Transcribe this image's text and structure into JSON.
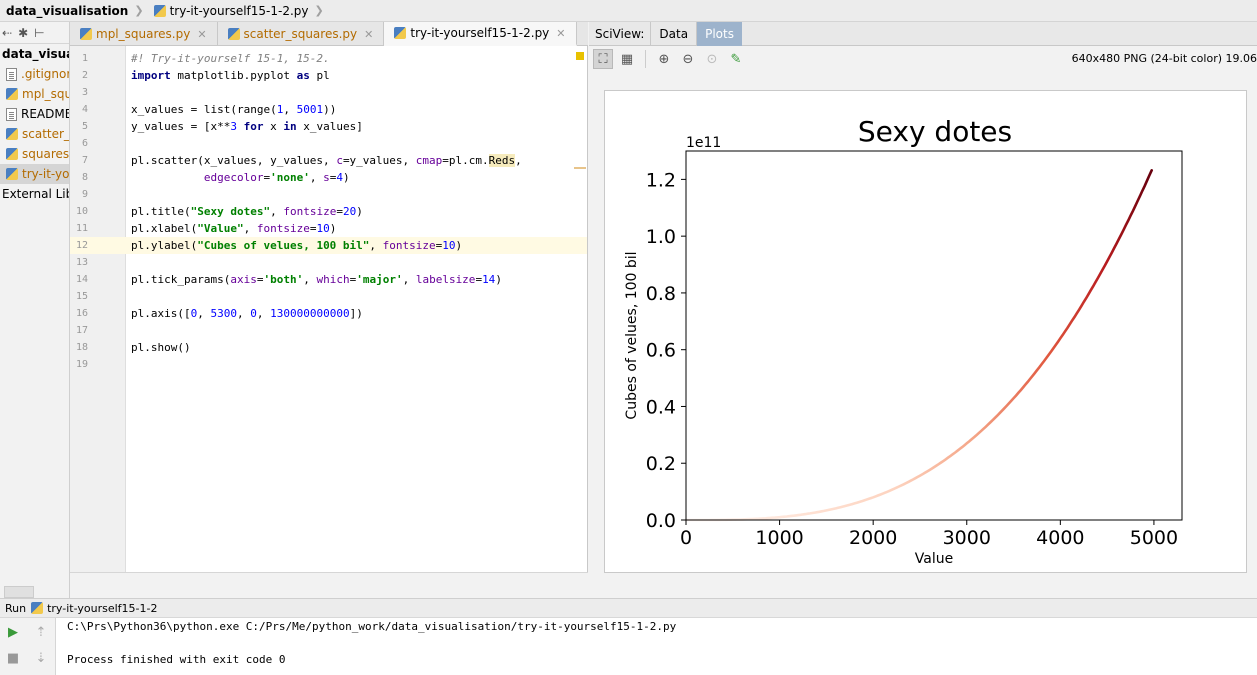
{
  "breadcrumb": {
    "project": "data_visualisation",
    "file": "try-it-yourself15-1-2.py"
  },
  "project_panel": {
    "toolbar_icons": [
      "hide-icon",
      "gear-icon",
      "collapse-icon"
    ],
    "root": "data_visualis",
    "items": [
      {
        "label": ".gitignore",
        "icon": "file-icon",
        "selected": false,
        "orange": true
      },
      {
        "label": "mpl_squa",
        "icon": "python-file-icon",
        "selected": false,
        "orange": true
      },
      {
        "label": "README.",
        "icon": "file-icon",
        "selected": false,
        "orange": false
      },
      {
        "label": "scatter_sq",
        "icon": "python-file-icon",
        "selected": false,
        "orange": true
      },
      {
        "label": "squares_p",
        "icon": "python-file-icon",
        "selected": false,
        "orange": true
      },
      {
        "label": "try-it-you",
        "icon": "python-file-icon",
        "selected": true,
        "orange": true
      }
    ],
    "external": "External Libra"
  },
  "editor_tabs": [
    {
      "label": "mpl_squares.py",
      "active": false
    },
    {
      "label": "scatter_squares.py",
      "active": false
    },
    {
      "label": "try-it-yourself15-1-2.py",
      "active": true
    }
  ],
  "code_lines": [
    "#! Try-it-yourself 15-1, 15-2.",
    "import matplotlib.pyplot as pl",
    "",
    "x_values = list(range(1, 5001))",
    "y_values = [x**3 for x in x_values]",
    "",
    "pl.scatter(x_values, y_values, c=y_values, cmap=pl.cm.Reds,",
    "           edgecolor='none', s=4)",
    "",
    "pl.title(\"Sexy dotes\", fontsize=20)",
    "pl.xlabel(\"Value\", fontsize=10)",
    "pl.ylabel(\"Cubes of velues, 100 bil\", fontsize=10)",
    "",
    "pl.tick_params(axis='both', which='major', labelsize=14)",
    "",
    "pl.axis([0, 5300, 0, 130000000000])",
    "",
    "pl.show()",
    ""
  ],
  "current_line": 12,
  "sciview": {
    "label": "SciView:",
    "tabs": [
      {
        "label": "Data",
        "active": false
      },
      {
        "label": "Plots",
        "active": true
      }
    ],
    "toolbar_icons": [
      "fit-icon",
      "grid-icon",
      "zoom-in-icon",
      "zoom-out-icon",
      "zoom-actual-icon",
      "color-picker-icon"
    ],
    "image_info": "640x480 PNG (24-bit color) 19.06"
  },
  "chart_data": {
    "type": "scatter",
    "title": "Sexy dotes",
    "xlabel": "Value",
    "ylabel": "Cubes of velues, 100 bil",
    "offset_text": "1e11",
    "xlim": [
      0,
      5300
    ],
    "ylim": [
      0,
      130000000000
    ],
    "x_ticks": [
      0,
      1000,
      2000,
      3000,
      4000,
      5000
    ],
    "x_tick_labels": [
      "0",
      "1000",
      "2000",
      "3000",
      "4000",
      "5000"
    ],
    "y_ticks": [
      0,
      20000000000,
      40000000000,
      60000000000,
      80000000000,
      100000000000,
      120000000000
    ],
    "y_tick_labels": [
      "0.0",
      "0.2",
      "0.4",
      "0.6",
      "0.8",
      "1.0",
      "1.2"
    ],
    "series": [
      {
        "x": [
          1,
          500,
          1000,
          1500,
          2000,
          2500,
          3000,
          3500,
          4000,
          4500,
          5000
        ],
        "y": [
          1,
          125000000,
          1000000000,
          3375000000,
          8000000000,
          15625000000,
          27000000000,
          42875000000,
          64000000000,
          91125000000,
          125000000000
        ],
        "colormap": "Reds"
      }
    ],
    "grid": false
  },
  "run": {
    "label": "Run",
    "config": "try-it-yourself15-1-2",
    "output": [
      "C:\\Prs\\Python36\\python.exe C:/Prs/Me/python_work/data_visualisation/try-it-yourself15-1-2.py",
      "",
      "Process finished with exit code 0"
    ]
  }
}
